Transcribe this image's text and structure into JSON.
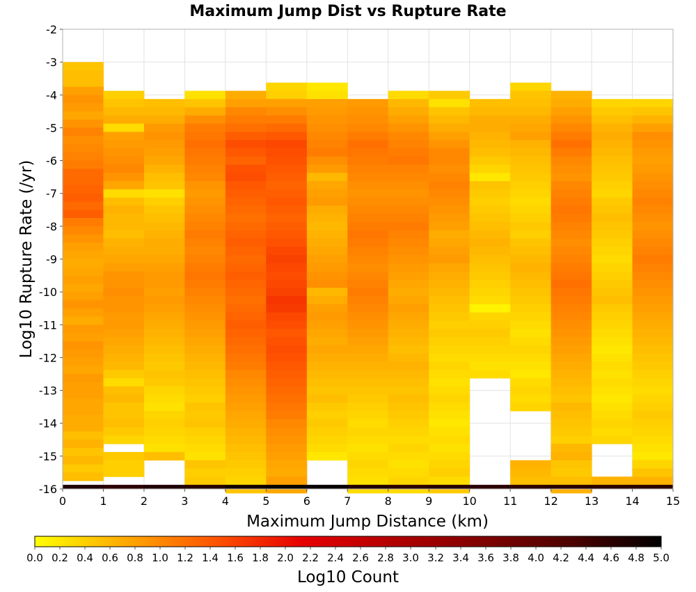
{
  "chart_data": {
    "type": "heatmap",
    "title": "Maximum Jump Dist vs Rupture Rate",
    "xlabel": "Maximum Jump Distance (km)",
    "ylabel": "Log10 Rupture Rate (/yr)",
    "xlim": [
      0,
      15
    ],
    "ylim": [
      -16,
      -2
    ],
    "x_ticks": [
      "0",
      "1",
      "2",
      "3",
      "4",
      "5",
      "6",
      "7",
      "8",
      "9",
      "10",
      "11",
      "12",
      "13",
      "14",
      "15"
    ],
    "y_ticks": [
      "-2",
      "-3",
      "-4",
      "-5",
      "-6",
      "-7",
      "-8",
      "-9",
      "-10",
      "-11",
      "-12",
      "-13",
      "-14",
      "-15",
      "-16"
    ],
    "x_bin_width": 1,
    "y_bin_height": 0.25,
    "colorbar": {
      "label": "Log10 Count",
      "range": [
        0,
        5
      ],
      "ticks": [
        "0.0",
        "0.2",
        "0.4",
        "0.6",
        "0.8",
        "1.0",
        "1.2",
        "1.4",
        "1.6",
        "1.8",
        "2.0",
        "2.2",
        "2.4",
        "2.6",
        "2.8",
        "3.0",
        "3.2",
        "3.4",
        "3.6",
        "3.8",
        "4.0",
        "4.2",
        "4.4",
        "4.6",
        "4.8",
        "5.0"
      ],
      "colors": [
        "#ffff00",
        "#ffaa00",
        "#ff5500",
        "#e60000",
        "#b30000",
        "#800000",
        "#4d0000",
        "#000000"
      ]
    },
    "column_ranges": [
      [
        -15.75,
        -3.0
      ],
      [
        -15.5,
        -3.875
      ],
      [
        -15.0,
        -4.125
      ],
      [
        -15.75,
        -3.875
      ],
      [
        -16.0,
        -3.875
      ],
      [
        -16.0,
        -3.625
      ],
      [
        -15.0,
        -3.625
      ],
      [
        -16.0,
        -4.125
      ],
      [
        -16.0,
        -3.875
      ],
      [
        -16.0,
        -3.875
      ],
      [
        -12.5,
        -4.125
      ],
      [
        -15.75,
        -3.625
      ],
      [
        -16.0,
        -3.875
      ],
      [
        -15.875,
        -4.125
      ],
      [
        -15.75,
        -4.125
      ]
    ],
    "column_gaps": [
      [],
      [
        [
          -14.25,
          -14.0
        ],
        [
          -14.875,
          -14.625
        ],
        [
          -13.75,
          -13.5
        ]
      ],
      [],
      [],
      [],
      [],
      [],
      [],
      [],
      [],
      [
        [
          -16.0,
          -12.75
        ]
      ],
      [
        [
          -15.25,
          -13.625
        ]
      ],
      [],
      [
        [
          -15.75,
          -14.5
        ]
      ],
      []
    ],
    "column_log10_count": [
      [
        0.5,
        0.55,
        0.55,
        0.8,
        0.9,
        0.85,
        0.75,
        0.9,
        1.05,
        0.95,
        1.0,
        1.05,
        1.1,
        1.25,
        1.25,
        1.3,
        1.35,
        1.25,
        1.35,
        1.1,
        1.0,
        0.9,
        0.8,
        0.75,
        0.7,
        0.75,
        0.8,
        0.75,
        0.8,
        0.9,
        0.8,
        0.7,
        0.85,
        0.8,
        0.9,
        0.85,
        0.8,
        0.75,
        0.85,
        0.8,
        0.8,
        0.75,
        0.75,
        0.7,
        0.7,
        0.55,
        0.65,
        0.5,
        0.6,
        0.45,
        0.55,
        0.5,
        0.5,
        0.65,
        0.3,
        0.6
      ],
      [
        0.4,
        0.5,
        0.6,
        0.7,
        0.3,
        0.8,
        0.85,
        0.9,
        0.95,
        1.0,
        0.9,
        0.75,
        0.3,
        0.55,
        0.65,
        0.6,
        0.6,
        0.55,
        0.65,
        0.7,
        0.75,
        0.8,
        0.9,
        0.9,
        0.95,
        0.9,
        0.9,
        0.85,
        0.85,
        0.8,
        0.75,
        0.7,
        0.65,
        0.6,
        0.45,
        0.3,
        0.55,
        0.6,
        0.5,
        0.5,
        0.55,
        0.45,
        0.35,
        0.5,
        0.45,
        0.4
      ],
      [
        0.55,
        0.6,
        0.7,
        0.85,
        0.9,
        0.85,
        0.8,
        0.75,
        0.65,
        0.55,
        0.5,
        0.25,
        0.4,
        0.5,
        0.55,
        0.6,
        0.65,
        0.7,
        0.7,
        0.75,
        0.8,
        0.85,
        0.85,
        0.8,
        0.85,
        0.8,
        0.75,
        0.7,
        0.65,
        0.6,
        0.55,
        0.5,
        0.45,
        0.5,
        0.45,
        0.35,
        0.3,
        0.25,
        0.35,
        0.4,
        0.35,
        0.3,
        0.25
      ],
      [
        0.25,
        0.5,
        0.7,
        0.95,
        1.1,
        1.15,
        1.2,
        1.15,
        1.1,
        1.05,
        1.0,
        0.9,
        0.85,
        0.9,
        0.95,
        1.0,
        1.05,
        1.1,
        1.05,
        1.0,
        1.05,
        1.1,
        1.15,
        1.1,
        1.05,
        1.0,
        0.95,
        0.9,
        0.85,
        0.8,
        0.75,
        0.7,
        0.65,
        0.6,
        0.55,
        0.5,
        0.45,
        0.4,
        0.5,
        0.45,
        0.5,
        0.4,
        0.35,
        0.3,
        0.25,
        0.5,
        0.4,
        0.45,
        0.5
      ],
      [
        0.7,
        0.8,
        1.0,
        1.1,
        1.2,
        1.35,
        1.5,
        1.4,
        1.3,
        1.45,
        1.5,
        1.4,
        1.35,
        1.3,
        1.25,
        1.2,
        1.25,
        1.3,
        1.35,
        1.3,
        1.25,
        1.3,
        1.35,
        1.3,
        1.25,
        1.2,
        1.25,
        1.3,
        1.35,
        1.3,
        1.25,
        1.2,
        1.15,
        1.1,
        1.0,
        0.95,
        0.9,
        0.85,
        0.8,
        0.75,
        0.7,
        0.65,
        0.6,
        0.55,
        0.5,
        0.45,
        0.4,
        0.35,
        0.5,
        0.45,
        0.4
      ],
      [
        0.35,
        0.4,
        0.8,
        0.95,
        1.1,
        1.25,
        1.4,
        1.55,
        1.5,
        1.45,
        1.4,
        1.35,
        1.3,
        1.35,
        1.4,
        1.35,
        1.3,
        1.35,
        1.4,
        1.45,
        1.55,
        1.6,
        1.55,
        1.5,
        1.55,
        1.6,
        1.7,
        1.65,
        1.55,
        1.5,
        1.4,
        1.45,
        1.5,
        1.45,
        1.4,
        1.35,
        1.3,
        1.25,
        1.2,
        1.15,
        1.1,
        1.0,
        0.95,
        0.9,
        0.85,
        0.8,
        0.75,
        0.7,
        0.8,
        0.75,
        0.6,
        0.55
      ],
      [
        0.2,
        0.25,
        0.8,
        0.85,
        0.9,
        0.95,
        1.0,
        1.05,
        1.1,
        0.95,
        0.85,
        0.6,
        0.75,
        0.8,
        0.85,
        0.7,
        0.65,
        0.6,
        0.65,
        0.7,
        0.75,
        0.8,
        0.85,
        0.9,
        0.95,
        0.6,
        0.7,
        0.8,
        0.85,
        0.8,
        0.75,
        0.7,
        0.75,
        0.7,
        0.65,
        0.6,
        0.55,
        0.5,
        0.55,
        0.45,
        0.4,
        0.45,
        0.4,
        0.35,
        0.3
      ],
      [
        0.85,
        0.9,
        0.95,
        1.0,
        1.1,
        1.2,
        1.15,
        1.1,
        1.05,
        1.0,
        0.95,
        0.9,
        0.95,
        1.0,
        1.05,
        1.1,
        1.15,
        1.1,
        1.05,
        1.0,
        0.95,
        1.0,
        1.05,
        1.1,
        1.05,
        1.0,
        0.95,
        0.9,
        0.85,
        0.8,
        0.75,
        0.7,
        0.65,
        0.6,
        0.55,
        0.5,
        0.45,
        0.4,
        0.35,
        0.3,
        0.35,
        0.3,
        0.25,
        0.3,
        0.35,
        0.3,
        0.25,
        0.3
      ],
      [
        0.3,
        0.6,
        0.7,
        0.8,
        0.9,
        1.0,
        1.05,
        1.1,
        1.15,
        1.05,
        1.0,
        0.95,
        0.9,
        0.95,
        1.0,
        1.05,
        1.1,
        1.05,
        1.0,
        0.95,
        0.9,
        0.85,
        0.8,
        0.75,
        0.7,
        0.75,
        0.8,
        0.75,
        0.7,
        0.65,
        0.6,
        0.55,
        0.6,
        0.65,
        0.6,
        0.55,
        0.5,
        0.55,
        0.5,
        0.45,
        0.4,
        0.35,
        0.3,
        0.35,
        0.3,
        0.25,
        0.3,
        0.35
      ],
      [
        0.45,
        0.25,
        0.5,
        0.6,
        0.7,
        0.8,
        0.9,
        1.0,
        1.0,
        0.95,
        1.0,
        1.05,
        1.0,
        0.95,
        0.9,
        0.85,
        0.8,
        0.7,
        0.75,
        0.8,
        0.85,
        0.75,
        0.7,
        0.65,
        0.6,
        0.55,
        0.5,
        0.45,
        0.4,
        0.45,
        0.4,
        0.35,
        0.3,
        0.35,
        0.3,
        0.25,
        0.3,
        0.35,
        0.3,
        0.25,
        0.2,
        0.25,
        0.3,
        0.25,
        0.3,
        0.35,
        0.4,
        0.3
      ],
      [
        0.55,
        0.6,
        0.7,
        0.7,
        0.65,
        0.6,
        0.55,
        0.45,
        0.35,
        0.2,
        0.5,
        0.45,
        0.4,
        0.45,
        0.5,
        0.55,
        0.6,
        0.65,
        0.6,
        0.55,
        0.5,
        0.45,
        0.4,
        0.35,
        0.3,
        0.1,
        0.35,
        0.4,
        0.45,
        0.4,
        0.35,
        0.3,
        0.25,
        0.3,
        0.35
      ],
      [
        0.35,
        0.5,
        0.55,
        0.6,
        0.7,
        0.75,
        0.8,
        0.65,
        0.6,
        0.55,
        0.5,
        0.45,
        0.4,
        0.35,
        0.3,
        0.35,
        0.4,
        0.45,
        0.4,
        0.5,
        0.55,
        0.6,
        0.65,
        0.6,
        0.55,
        0.5,
        0.45,
        0.4,
        0.35,
        0.3,
        0.25,
        0.3,
        0.35,
        0.3,
        0.25,
        0.2,
        0.3,
        0.35,
        0.3
      ],
      [
        0.65,
        0.7,
        0.8,
        0.9,
        1.0,
        1.1,
        1.2,
        1.1,
        1.0,
        0.95,
        0.9,
        1.0,
        1.05,
        1.1,
        1.15,
        1.1,
        1.05,
        1.0,
        0.95,
        1.0,
        1.05,
        1.1,
        1.15,
        1.2,
        1.15,
        1.1,
        1.05,
        1.0,
        0.95,
        0.9,
        0.85,
        0.8,
        0.75,
        0.7,
        0.65,
        0.6,
        0.55,
        0.5,
        0.6,
        0.55,
        0.5,
        0.45,
        0.4,
        0.6,
        0.65,
        0.5,
        0.45,
        0.55
      ],
      [
        0.35,
        0.45,
        0.55,
        0.65,
        0.7,
        0.65,
        0.6,
        0.55,
        0.5,
        0.45,
        0.4,
        0.35,
        0.45,
        0.5,
        0.55,
        0.5,
        0.45,
        0.4,
        0.35,
        0.3,
        0.35,
        0.4,
        0.45,
        0.5,
        0.55,
        0.45,
        0.4,
        0.35,
        0.3,
        0.25,
        0.2,
        0.25,
        0.3,
        0.25,
        0.3,
        0.25,
        0.2,
        0.25,
        0.3,
        0.35,
        0.3
      ],
      [
        0.35,
        0.5,
        0.65,
        0.8,
        0.95,
        0.9,
        0.85,
        0.8,
        0.85,
        0.9,
        0.95,
        1.0,
        1.05,
        1.0,
        0.95,
        0.9,
        0.95,
        1.0,
        1.05,
        1.1,
        1.05,
        1.0,
        0.95,
        0.9,
        0.85,
        0.8,
        0.75,
        0.7,
        0.65,
        0.6,
        0.55,
        0.5,
        0.45,
        0.4,
        0.35,
        0.3,
        0.35,
        0.4,
        0.45,
        0.4,
        0.35,
        0.3,
        0.25,
        0.2
      ]
    ],
    "bottom_row": {
      "y_range": [
        -16.0,
        -15.875
      ],
      "log10_count": [
        4.7,
        4.6,
        4.7,
        4.65,
        4.85,
        4.95,
        4.95,
        4.7,
        4.6,
        4.65,
        4.6,
        4.6,
        4.65,
        4.6,
        4.6
      ]
    },
    "grid": true
  }
}
